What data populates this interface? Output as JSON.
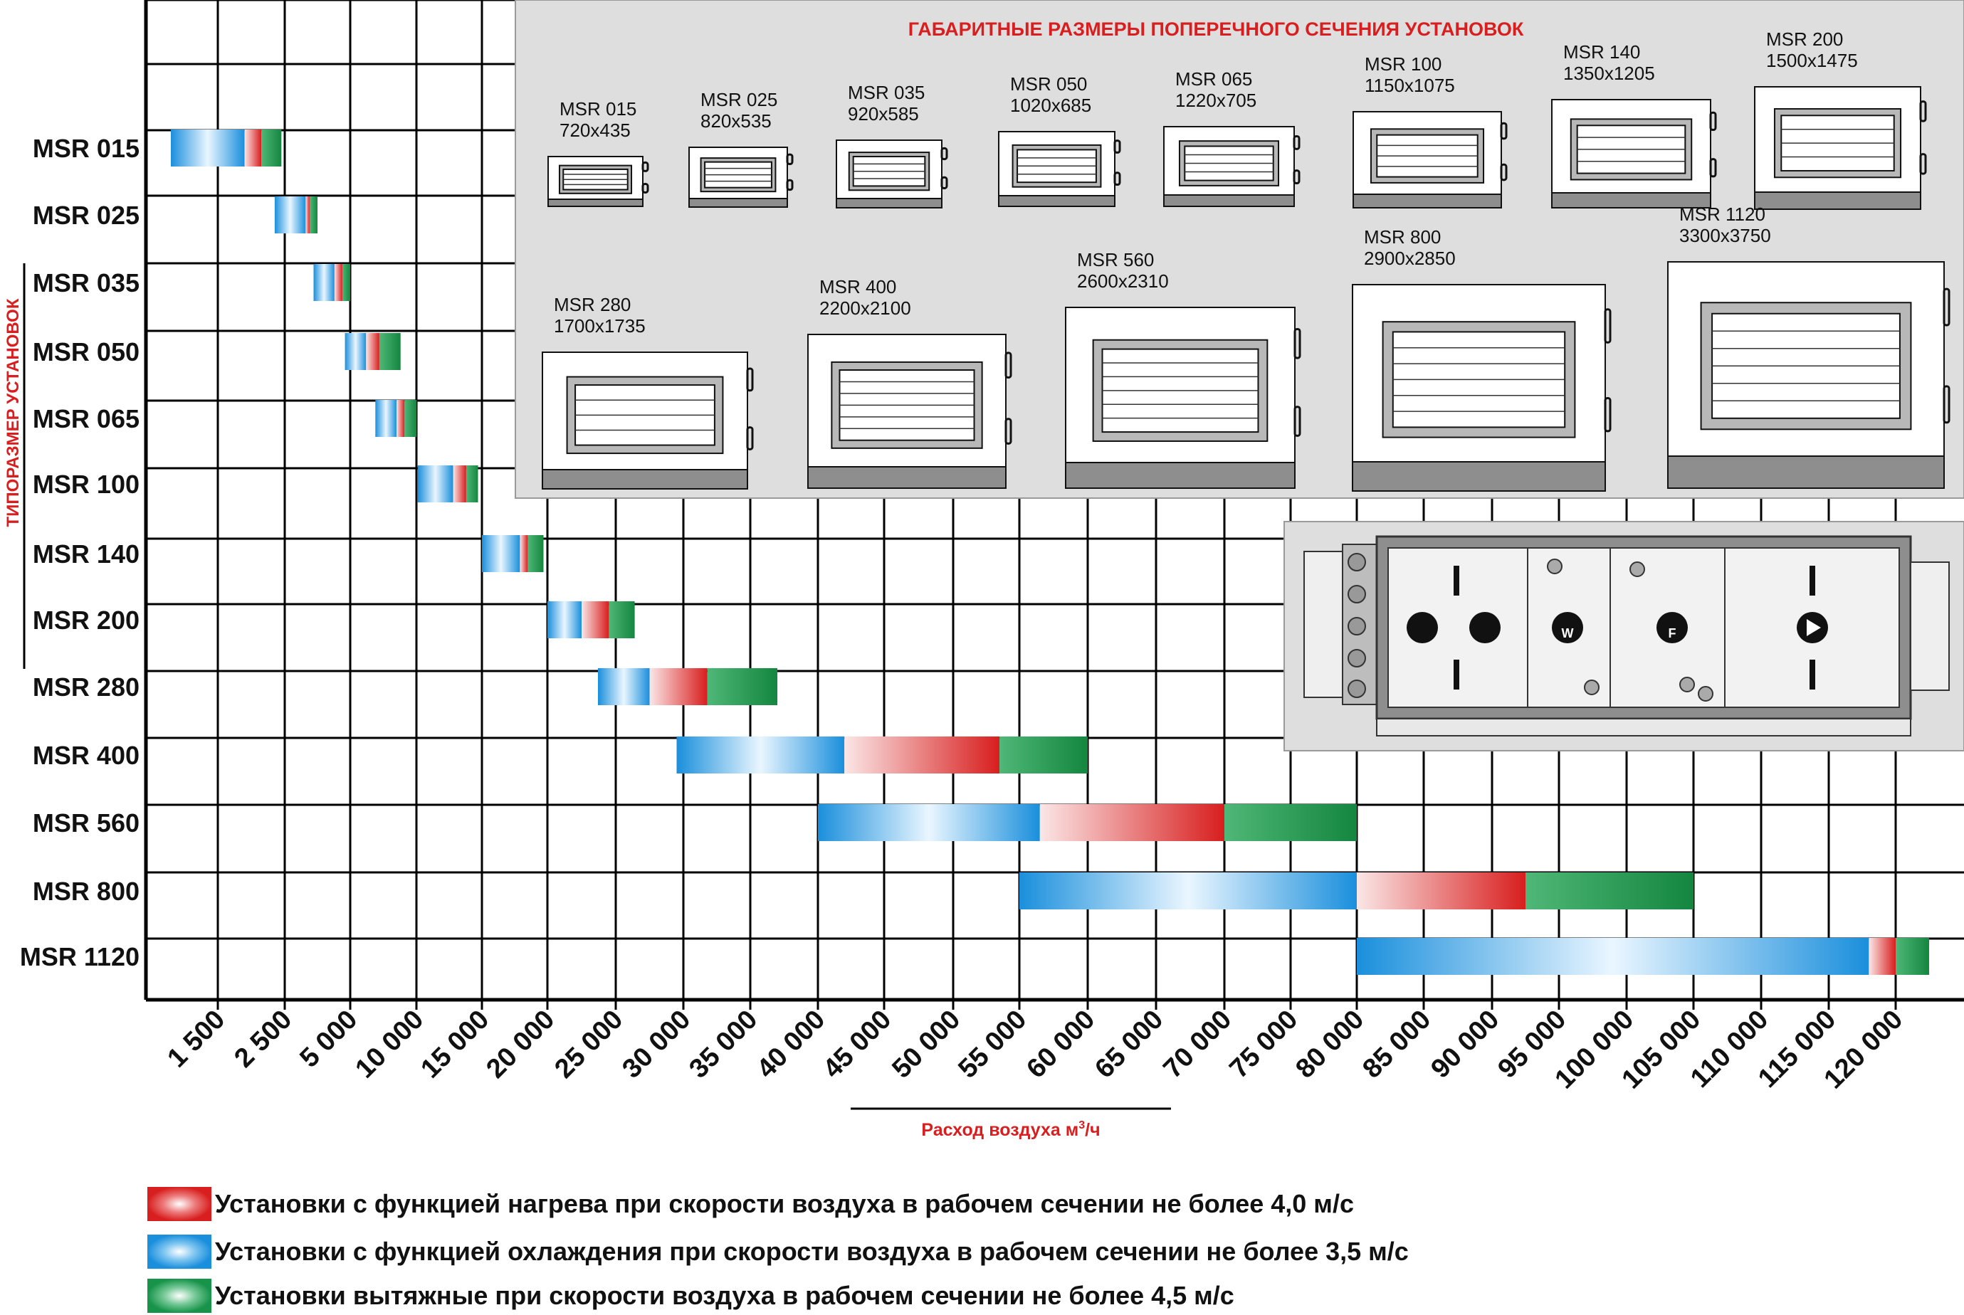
{
  "chart_data": {
    "type": "bar",
    "title": "",
    "xlabel": "Расход воздуха м³/ч",
    "xlabel_main": "Расход воздуха м",
    "xlabel_sup": "3",
    "xlabel_tail": "/ч",
    "ylabel": "ТИПОРАЗМЕР УСТАНОВОК",
    "x_ticks": [
      "1 500",
      "2 500",
      "5 000",
      "10 000",
      "15 000",
      "20 000",
      "25 000",
      "30 000",
      "35 000",
      "40 000",
      "45 000",
      "50 000",
      "55 000",
      "60 000",
      "65 000",
      "70 000",
      "75 000",
      "80 000",
      "85 000",
      "90 000",
      "95 000",
      "100 000",
      "105 000",
      "110 000",
      "115 000",
      "120 000"
    ],
    "categories": [
      "MSR 015",
      "MSR 025",
      "MSR 035",
      "MSR 050",
      "MSR 065",
      "MSR 100",
      "MSR 140",
      "MSR 200",
      "MSR 280",
      "MSR 400",
      "MSR 560",
      "MSR 800",
      "MSR 1120"
    ],
    "series": [
      {
        "name": "Установки с функцией охлаждения при скорости воздуха в рабочем сечении не более 3,5 м/с",
        "color": "#1a8fdc",
        "ranges": [
          [
            1000,
            1900
          ],
          [
            2350,
            3300
          ],
          [
            3600,
            4400
          ],
          [
            4800,
            6200
          ],
          [
            6900,
            8500
          ],
          [
            10100,
            12800
          ],
          [
            15000,
            17900
          ],
          [
            20000,
            22500
          ],
          [
            23700,
            27500
          ],
          [
            29500,
            42000
          ],
          [
            40000,
            56500
          ],
          [
            55000,
            80000
          ],
          [
            80000,
            118000
          ]
        ]
      },
      {
        "name": "Установки с функцией нагрева при скорости воздуха в рабочем сечении не более 4,0 м/с",
        "color": "#d81e1e",
        "ranges": [
          [
            1900,
            2150
          ],
          [
            3300,
            3450
          ],
          [
            4400,
            4700
          ],
          [
            6200,
            7200
          ],
          [
            8500,
            9100
          ],
          [
            12800,
            13800
          ],
          [
            17900,
            18500
          ],
          [
            22500,
            24500
          ],
          [
            27500,
            31800
          ],
          [
            42000,
            53500
          ],
          [
            56500,
            70000
          ],
          [
            80000,
            92500
          ],
          [
            118000,
            120000
          ]
        ]
      },
      {
        "name": "Установки вытяжные при скорости воздуха в рабочем сечении не более 4,5 м/с",
        "color": "#17934a",
        "ranges": [
          [
            2150,
            2450
          ],
          [
            3450,
            3750
          ],
          [
            4700,
            5000
          ],
          [
            7200,
            8800
          ],
          [
            9100,
            10000
          ],
          [
            13800,
            14700
          ],
          [
            18500,
            19700
          ],
          [
            24500,
            26400
          ],
          [
            31800,
            37000
          ],
          [
            53500,
            60000
          ],
          [
            70000,
            80000
          ],
          [
            92500,
            105000
          ],
          [
            120000,
            122500
          ]
        ]
      }
    ]
  },
  "panel": {
    "title": "ГАБАРИТНЫЕ РАЗМЕРЫ ПОПЕРЕЧНОГО СЕЧЕНИЯ УСТАНОВОК",
    "units": [
      {
        "name": "MSR 015",
        "size": "720x435"
      },
      {
        "name": "MSR 025",
        "size": "820x535"
      },
      {
        "name": "MSR 035",
        "size": "920x585"
      },
      {
        "name": "MSR 050",
        "size": "1020x685"
      },
      {
        "name": "MSR 065",
        "size": "1220x705"
      },
      {
        "name": "MSR 100",
        "size": "1150x1075"
      },
      {
        "name": "MSR 140",
        "size": "1350x1205"
      },
      {
        "name": "MSR 200",
        "size": "1500x1475"
      },
      {
        "name": "MSR 280",
        "size": "1700x1735"
      },
      {
        "name": "MSR 400",
        "size": "2200x2100"
      },
      {
        "name": "MSR 560",
        "size": "2600x2310"
      },
      {
        "name": "MSR 800",
        "size": "2900x2850"
      },
      {
        "name": "MSR 1120",
        "size": "3300x3750"
      }
    ]
  },
  "side_view": {
    "marks": [
      "W",
      "F"
    ]
  },
  "legend": [
    {
      "text": "Установки с функцией нагрева при скорости воздуха в рабочем сечении не более 4,0 м/с",
      "color": "#d81e1e"
    },
    {
      "text": "Установки с функцией охлаждения при скорости воздуха в рабочем сечении не более 3,5 м/с",
      "color": "#1a8fdc"
    },
    {
      "text": "Установки вытяжные при скорости воздуха в рабочем сечении не более 4,5 м/с",
      "color": "#17934a"
    }
  ]
}
